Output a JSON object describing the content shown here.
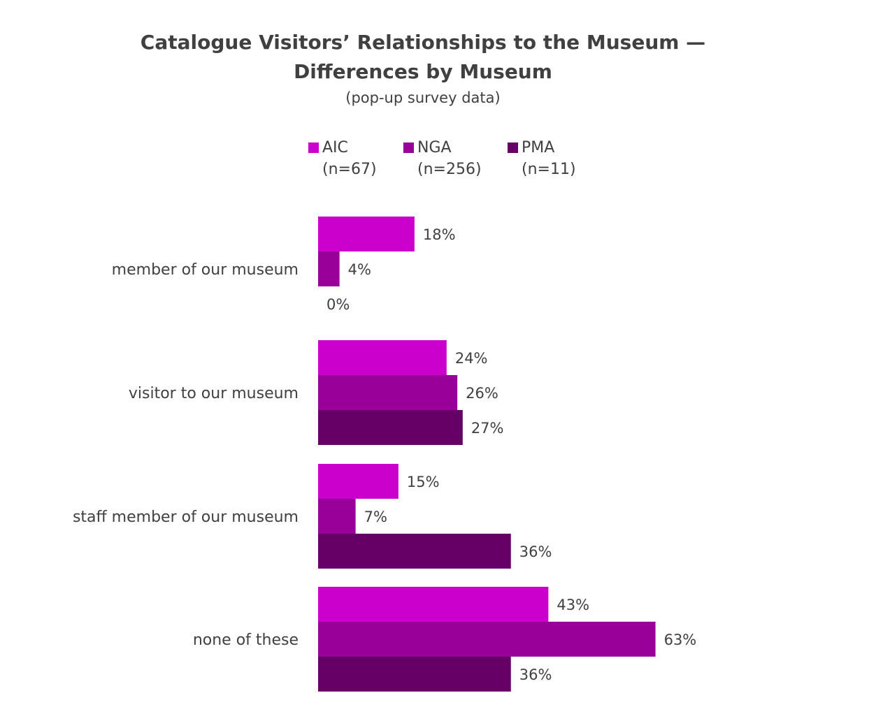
{
  "chart_data": {
    "type": "bar",
    "orientation": "horizontal",
    "title_line1": "Catalogue Visitors’ Relationships to the Museum —",
    "title_line2": "Differences by Museum",
    "subtitle": "(pop-up survey data)",
    "categories": [
      "member of our museum",
      "visitor to our museum",
      "staff member of our museum",
      "none of these"
    ],
    "series": [
      {
        "name": "AIC",
        "n_label": "(n=67)",
        "color": "#cc00cc",
        "values": [
          18,
          24,
          15,
          43
        ],
        "labels": [
          "18%",
          "24%",
          "15%",
          "43%"
        ]
      },
      {
        "name": "NGA",
        "n_label": "(n=256)",
        "color": "#990099",
        "values": [
          4,
          26,
          7,
          63
        ],
        "labels": [
          "4%",
          "26%",
          "7%",
          "63%"
        ]
      },
      {
        "name": "PMA",
        "n_label": "(n=11)",
        "color": "#660066",
        "values": [
          0,
          27,
          36,
          36
        ],
        "labels": [
          "0%",
          "27%",
          "36%",
          "36%"
        ]
      }
    ],
    "xlim": [
      0,
      100
    ],
    "legend_position": "top",
    "grid": false
  }
}
